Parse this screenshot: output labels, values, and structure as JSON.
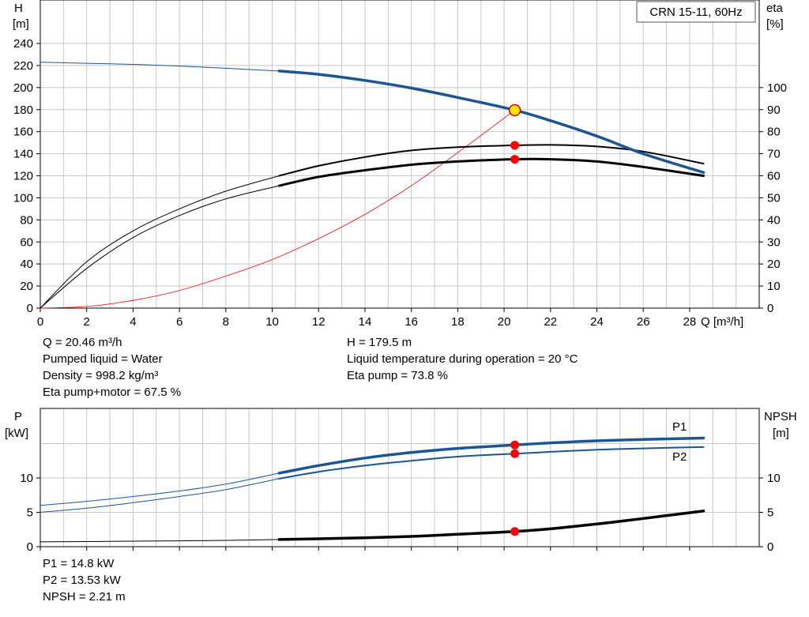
{
  "chart_data": [
    {
      "type": "line",
      "title": "CRN 15-11, 60Hz",
      "xlabel": "Q [m³/h]",
      "ylabel": [
        "H",
        "[m]"
      ],
      "y2label": [
        "eta",
        "[%]"
      ],
      "xlim": [
        0,
        31
      ],
      "ylim": [
        0,
        240
      ],
      "y2lim": [
        0,
        120
      ],
      "xticks": [
        0,
        2,
        4,
        6,
        8,
        10,
        12,
        14,
        16,
        18,
        20,
        22,
        24,
        26,
        28
      ],
      "yticks": [
        0,
        20,
        40,
        60,
        80,
        100,
        120,
        140,
        160,
        180,
        200,
        220,
        240
      ],
      "y2ticks": [
        0,
        10,
        20,
        30,
        40,
        50,
        60,
        70,
        80,
        90,
        100
      ],
      "grid": true,
      "series": [
        {
          "name": "H",
          "axis": "y",
          "color": "#1a5594",
          "x": [
            0,
            2,
            4,
            6,
            8,
            10.3,
            12,
            14,
            16,
            18,
            20.46,
            22,
            24,
            26,
            28.6
          ],
          "y": [
            223,
            222,
            221,
            219.5,
            217.5,
            215,
            212,
            206.5,
            199.5,
            191,
            179.5,
            170,
            156,
            140,
            123
          ]
        },
        {
          "name": "Eta pump",
          "axis": "y2",
          "color": "#000000",
          "x": [
            0,
            2,
            4,
            6,
            8,
            10.3,
            12,
            14,
            16,
            18,
            20.46,
            22,
            24,
            26,
            28.6
          ],
          "y": [
            0,
            21,
            35,
            45,
            53,
            60,
            64.5,
            68.5,
            71.5,
            73,
            73.8,
            74,
            73.3,
            71,
            65.5
          ]
        },
        {
          "name": "Eta pump+motor",
          "axis": "y2",
          "color": "#000000",
          "x": [
            0,
            2,
            4,
            6,
            8,
            10.3,
            12,
            14,
            16,
            18,
            20.46,
            22,
            24,
            26,
            28.6
          ],
          "y": [
            0,
            18,
            32,
            42,
            49.5,
            55.5,
            59.5,
            62.5,
            65,
            66.5,
            67.5,
            67.5,
            66.5,
            64,
            60
          ]
        },
        {
          "name": "System curve",
          "axis": "y",
          "color": "#ff0000",
          "x": [
            0,
            2,
            4,
            6,
            8,
            10,
            12,
            14,
            16,
            18,
            20.46
          ],
          "y": [
            0,
            1.5,
            7,
            16,
            29,
            44,
            63,
            85,
            111,
            141,
            179.5
          ]
        }
      ],
      "operating_point": {
        "x": 20.46,
        "h": 179.5,
        "eta_pump": 73.8,
        "eta_total": 67.5
      }
    },
    {
      "type": "line",
      "xlabel": "",
      "ylabel": [
        "P",
        "[kW]"
      ],
      "y2label": [
        "NPSH",
        "[m]"
      ],
      "xlim": [
        0,
        31
      ],
      "ylim": [
        0,
        20
      ],
      "y2lim": [
        0,
        20
      ],
      "yticks": [
        0,
        5,
        10
      ],
      "y2ticks": [
        0,
        5,
        10
      ],
      "grid": true,
      "series": [
        {
          "name": "P1",
          "axis": "y",
          "color": "#1a5594",
          "x": [
            0,
            2,
            4,
            6,
            8,
            10.3,
            12,
            14,
            16,
            18,
            20.46,
            22,
            24,
            26,
            28.6
          ],
          "y": [
            6,
            6.6,
            7.3,
            8.1,
            9.1,
            10.7,
            11.8,
            12.9,
            13.7,
            14.3,
            14.8,
            15.1,
            15.4,
            15.6,
            15.8
          ]
        },
        {
          "name": "P2",
          "axis": "y",
          "color": "#1a5594",
          "x": [
            0,
            2,
            4,
            6,
            8,
            10.3,
            12,
            14,
            16,
            18,
            20.46,
            22,
            24,
            26,
            28.6
          ],
          "y": [
            5,
            5.6,
            6.4,
            7.3,
            8.3,
            9.9,
            10.9,
            11.8,
            12.5,
            13.1,
            13.53,
            13.8,
            14.1,
            14.3,
            14.5
          ]
        },
        {
          "name": "NPSH",
          "axis": "y2",
          "color": "#000000",
          "x": [
            0,
            2,
            4,
            6,
            8,
            10.3,
            12,
            14,
            16,
            18,
            20.46,
            22,
            24,
            26,
            28.6
          ],
          "y": [
            0.7,
            0.75,
            0.8,
            0.85,
            0.92,
            1.05,
            1.15,
            1.3,
            1.5,
            1.8,
            2.21,
            2.6,
            3.3,
            4.1,
            5.2
          ]
        }
      ],
      "operating_point": {
        "x": 20.46,
        "p1": 14.8,
        "p2": 13.53,
        "npsh": 2.21
      }
    }
  ],
  "info_top": {
    "q": "Q = 20.46 m³/h",
    "liquid": "Pumped liquid = Water",
    "density": "Density = 998.2 kg/m³",
    "eta_total": "Eta pump+motor = 67.5 %",
    "h": "H = 179.5 m",
    "temp": "Liquid temperature during operation = 20 °C",
    "eta_pump": "Eta pump = 73.8 %"
  },
  "info_bottom": {
    "p1": "P1 = 14.8 kW",
    "p2": "P2 = 13.53 kW",
    "npsh": "NPSH = 2.21 m"
  },
  "colors": {
    "blue": "#1a5594",
    "red": "#ff0000",
    "grid": "#c8c8c8",
    "yellow": "#ffe600"
  }
}
